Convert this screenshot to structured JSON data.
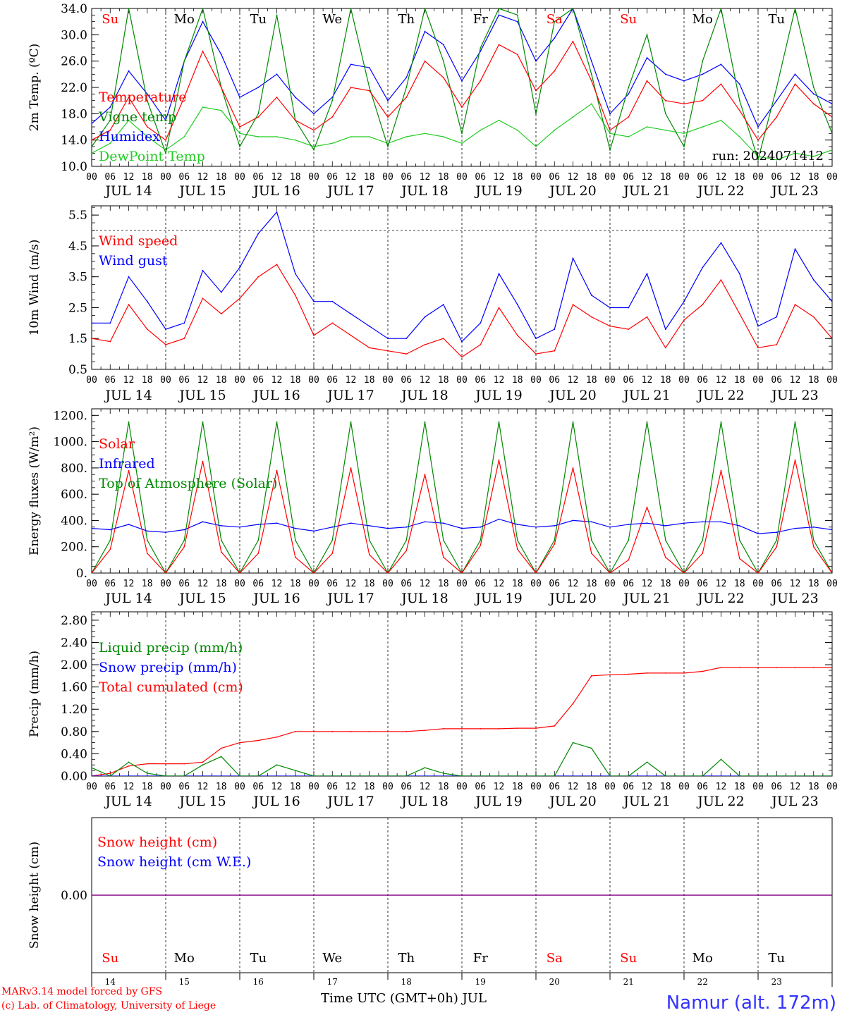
{
  "run_label": "run: 2024071412",
  "day_labels": [
    "JUL 14",
    "JUL 15",
    "JUL 16",
    "JUL 17",
    "JUL 18",
    "JUL 19",
    "JUL 20",
    "JUL 21",
    "JUL 22",
    "JUL 23"
  ],
  "hour_ticks": [
    "00",
    "06",
    "12",
    "18"
  ],
  "weekdays": [
    {
      "label": "Su",
      "color": "#ff0000"
    },
    {
      "label": "Mo",
      "color": "#000000"
    },
    {
      "label": "Tu",
      "color": "#000000"
    },
    {
      "label": "We",
      "color": "#000000"
    },
    {
      "label": "Th",
      "color": "#000000"
    },
    {
      "label": "Fr",
      "color": "#000000"
    },
    {
      "label": "Sa",
      "color": "#ff0000"
    },
    {
      "label": "Su",
      "color": "#ff0000"
    },
    {
      "label": "Mo",
      "color": "#000000"
    },
    {
      "label": "Tu",
      "color": "#000000"
    }
  ],
  "bottom_day_numbers": [
    "14",
    "15",
    "16",
    "17",
    "18",
    "19",
    "20",
    "21",
    "22",
    "23"
  ],
  "x_axis_title": "Time UTC (GMT+0h) JUL",
  "credit_line1": "MARv3.14 model forced by GFS",
  "credit_line2": "(c) Lab. of Climatology, University of Liege",
  "station_label": "Namur (alt. 172m)",
  "colors": {
    "red": "#ff0000",
    "green": "#008800",
    "blue": "#0000ff",
    "lightgreen": "#22cc22",
    "purple": "#800080"
  },
  "chart_data": [
    {
      "type": "line",
      "ylabel": "2m Temp. (ºC)",
      "ylim": [
        10,
        34
      ],
      "yticks": [
        "10.0",
        "14.0",
        "18.0",
        "22.0",
        "26.0",
        "30.0",
        "34.0"
      ],
      "legend": [
        "Temperature",
        "Vigne temp",
        "Humidex",
        "DewPoint Temp"
      ],
      "x_hours": [
        0,
        6,
        12,
        18,
        24,
        30,
        36,
        42,
        48,
        54,
        60,
        66,
        72,
        78,
        84,
        90,
        96,
        102,
        108,
        114,
        120,
        126,
        132,
        138,
        144,
        150,
        156,
        162,
        168,
        174,
        180,
        186,
        192,
        198,
        204,
        210,
        216,
        222,
        228,
        234,
        240
      ],
      "series": [
        {
          "name": "Temperature",
          "color": "red",
          "values": [
            14.0,
            15.5,
            20.5,
            16.0,
            14.0,
            20.5,
            27.5,
            22.0,
            16.0,
            17.5,
            20.5,
            17.0,
            15.5,
            17.5,
            22.0,
            21.5,
            17.5,
            20.5,
            26.0,
            23.5,
            19.0,
            23.0,
            28.5,
            27.0,
            21.5,
            24.5,
            29.0,
            23.0,
            15.5,
            17.5,
            23.0,
            20.0,
            19.5,
            20.0,
            22.5,
            18.5,
            14.0,
            17.5,
            22.5,
            19.5,
            17.5
          ]
        },
        {
          "name": "Vigne temp",
          "color": "green",
          "values": [
            13.0,
            17.0,
            34.0,
            20.0,
            12.0,
            26.0,
            34.0,
            22.0,
            13.0,
            18.0,
            33.0,
            17.0,
            12.5,
            20.0,
            34.0,
            22.0,
            13.0,
            22.0,
            34.0,
            26.0,
            15.0,
            28.0,
            34.0,
            33.0,
            18.0,
            32.0,
            34.0,
            24.0,
            12.5,
            22.0,
            30.0,
            18.0,
            13.0,
            26.0,
            34.0,
            20.0,
            11.0,
            22.0,
            34.0,
            22.0,
            15.0
          ]
        },
        {
          "name": "Humidex",
          "color": "blue",
          "values": [
            16.5,
            19.0,
            24.5,
            21.0,
            17.0,
            26.0,
            32.0,
            27.0,
            20.5,
            22.0,
            24.0,
            20.5,
            18.0,
            20.5,
            25.5,
            25.0,
            20.0,
            23.5,
            30.5,
            28.5,
            23.0,
            27.5,
            33.0,
            32.0,
            26.0,
            29.5,
            34.0,
            26.0,
            18.0,
            21.0,
            26.5,
            24.0,
            23.0,
            24.0,
            25.5,
            22.5,
            16.0,
            20.0,
            24.0,
            21.0,
            19.5
          ]
        },
        {
          "name": "DewPoint Temp",
          "color": "lightgreen",
          "values": [
            12.0,
            13.5,
            17.0,
            14.5,
            12.5,
            14.5,
            19.0,
            18.5,
            15.0,
            14.5,
            14.5,
            14.0,
            13.0,
            13.5,
            14.5,
            14.5,
            13.5,
            14.5,
            15.0,
            14.5,
            13.5,
            15.5,
            17.0,
            15.5,
            13.0,
            15.5,
            17.5,
            19.5,
            15.0,
            14.5,
            16.0,
            15.5,
            15.0,
            16.0,
            17.0,
            14.5,
            11.5,
            11.0,
            12.0,
            11.5,
            12.5
          ]
        }
      ]
    },
    {
      "type": "line",
      "ylabel": "10m Wind (m/s)",
      "ylim": [
        0.5,
        5.8
      ],
      "yticks": [
        "0.5",
        "1.5",
        "2.5",
        "3.5",
        "4.5",
        "5.5"
      ],
      "reference_line": 5.0,
      "legend": [
        "Wind speed",
        "Wind gust"
      ],
      "x_hours": [
        0,
        6,
        12,
        18,
        24,
        30,
        36,
        42,
        48,
        54,
        60,
        66,
        72,
        78,
        84,
        90,
        96,
        102,
        108,
        114,
        120,
        126,
        132,
        138,
        144,
        150,
        156,
        162,
        168,
        174,
        180,
        186,
        192,
        198,
        204,
        210,
        216,
        222,
        228,
        234,
        240
      ],
      "series": [
        {
          "name": "Wind speed",
          "color": "red",
          "values": [
            1.5,
            1.4,
            2.6,
            1.8,
            1.3,
            1.5,
            2.8,
            2.3,
            2.8,
            3.5,
            3.9,
            2.9,
            1.6,
            2.0,
            1.6,
            1.2,
            1.1,
            1.0,
            1.3,
            1.5,
            0.9,
            1.3,
            2.5,
            1.6,
            1.0,
            1.1,
            2.6,
            2.2,
            1.9,
            1.8,
            2.2,
            1.2,
            2.1,
            2.6,
            3.4,
            2.3,
            1.2,
            1.3,
            2.6,
            2.2,
            1.5
          ]
        },
        {
          "name": "Wind gust",
          "color": "blue",
          "values": [
            2.0,
            2.0,
            3.5,
            2.7,
            1.8,
            2.0,
            3.7,
            3.0,
            3.8,
            4.9,
            5.6,
            3.6,
            2.7,
            2.7,
            2.3,
            1.9,
            1.5,
            1.5,
            2.2,
            2.6,
            1.4,
            2.0,
            3.6,
            2.6,
            1.5,
            1.8,
            4.1,
            2.9,
            2.5,
            2.5,
            3.6,
            1.8,
            2.7,
            3.8,
            4.6,
            3.6,
            1.9,
            2.2,
            4.4,
            3.4,
            2.7
          ]
        }
      ]
    },
    {
      "type": "line",
      "ylabel": "Energy fluxes (W/m²)",
      "ylim": [
        0,
        1250
      ],
      "yticks": [
        "0.",
        "200.",
        "400.",
        "600.",
        "800.",
        "1000.",
        "1200."
      ],
      "legend": [
        "Solar",
        "Infrared",
        "Top of Atmosphere (Solar)"
      ],
      "x_hours": [
        0,
        6,
        12,
        18,
        24,
        30,
        36,
        42,
        48,
        54,
        60,
        66,
        72,
        78,
        84,
        90,
        96,
        102,
        108,
        114,
        120,
        126,
        132,
        138,
        144,
        150,
        156,
        162,
        168,
        174,
        180,
        186,
        192,
        198,
        204,
        210,
        216,
        222,
        228,
        234,
        240
      ],
      "series": [
        {
          "name": "Solar",
          "color": "red",
          "values": [
            0,
            180,
            780,
            150,
            0,
            200,
            850,
            160,
            0,
            150,
            780,
            120,
            0,
            150,
            800,
            140,
            0,
            170,
            750,
            120,
            0,
            210,
            860,
            180,
            0,
            220,
            800,
            150,
            0,
            100,
            500,
            120,
            0,
            150,
            780,
            110,
            0,
            200,
            860,
            200,
            0
          ]
        },
        {
          "name": "Infrared",
          "color": "blue",
          "values": [
            340,
            330,
            370,
            320,
            310,
            330,
            390,
            360,
            350,
            370,
            380,
            340,
            320,
            350,
            380,
            360,
            340,
            350,
            390,
            380,
            340,
            350,
            410,
            370,
            350,
            360,
            400,
            390,
            350,
            370,
            380,
            360,
            380,
            390,
            390,
            360,
            300,
            310,
            340,
            350,
            330
          ]
        },
        {
          "name": "Top of Atmosphere (Solar)",
          "color": "green",
          "values": [
            0,
            250,
            1150,
            250,
            0,
            250,
            1150,
            250,
            0,
            250,
            1150,
            250,
            0,
            250,
            1150,
            250,
            0,
            250,
            1150,
            250,
            0,
            250,
            1150,
            250,
            0,
            250,
            1150,
            250,
            0,
            250,
            1150,
            250,
            0,
            250,
            1150,
            250,
            0,
            250,
            1150,
            250,
            0
          ]
        }
      ]
    },
    {
      "type": "line",
      "ylabel": "Precip (mm/h)",
      "ylim": [
        0,
        2.95
      ],
      "yticks": [
        "0.00",
        "0.40",
        "0.80",
        "1.20",
        "1.60",
        "2.00",
        "2.40",
        "2.80"
      ],
      "legend": [
        "Liquid precip (mm/h)",
        "Snow precip (mm/h)",
        "Total cumulated (cm)"
      ],
      "x_hours": [
        0,
        6,
        12,
        18,
        24,
        30,
        36,
        42,
        48,
        54,
        60,
        66,
        72,
        78,
        84,
        90,
        96,
        102,
        108,
        114,
        120,
        126,
        132,
        138,
        144,
        150,
        156,
        162,
        168,
        174,
        180,
        186,
        192,
        198,
        204,
        210,
        216,
        222,
        228,
        234,
        240
      ],
      "series": [
        {
          "name": "Liquid precip (mm/h)",
          "color": "green",
          "values": [
            0.15,
            0.0,
            0.25,
            0.05,
            0.0,
            0.0,
            0.2,
            0.35,
            0.0,
            0.0,
            0.2,
            0.1,
            0.0,
            0.0,
            0.0,
            0.0,
            0.0,
            0.0,
            0.15,
            0.05,
            0.0,
            0.0,
            0.0,
            0.0,
            0.0,
            0.0,
            0.6,
            0.5,
            0.0,
            0.0,
            0.25,
            0.0,
            0.0,
            0.0,
            0.3,
            0.0,
            0.0,
            0.0,
            0.0,
            0.0,
            0.0
          ]
        },
        {
          "name": "Snow precip (mm/h)",
          "color": "blue",
          "values": [
            0,
            0,
            0,
            0,
            0,
            0,
            0,
            0,
            0,
            0,
            0,
            0,
            0,
            0,
            0,
            0,
            0,
            0,
            0,
            0,
            0,
            0,
            0,
            0,
            0,
            0,
            0,
            0,
            0,
            0,
            0,
            0,
            0,
            0,
            0,
            0,
            0,
            0,
            0,
            0,
            0
          ]
        },
        {
          "name": "Total cumulated (cm)",
          "color": "red",
          "values": [
            0.0,
            0.05,
            0.18,
            0.22,
            0.22,
            0.22,
            0.25,
            0.5,
            0.6,
            0.64,
            0.7,
            0.8,
            0.8,
            0.8,
            0.8,
            0.8,
            0.8,
            0.8,
            0.82,
            0.85,
            0.85,
            0.85,
            0.85,
            0.86,
            0.86,
            0.9,
            1.3,
            1.8,
            1.82,
            1.83,
            1.85,
            1.85,
            1.85,
            1.88,
            1.95,
            1.95,
            1.95,
            1.95,
            1.95,
            1.95,
            1.95
          ]
        }
      ]
    },
    {
      "type": "line",
      "ylabel": "Snow height (cm)",
      "yticks": [
        "0.00"
      ],
      "legend": [
        "Snow height (cm)",
        "Snow height (cm W.E.)"
      ],
      "series": [
        {
          "name": "Snow height (cm)",
          "color": "red",
          "values": [
            0,
            0
          ]
        },
        {
          "name": "Snow height (cm W.E.)",
          "color": "blue",
          "values": [
            0,
            0
          ]
        }
      ]
    }
  ]
}
